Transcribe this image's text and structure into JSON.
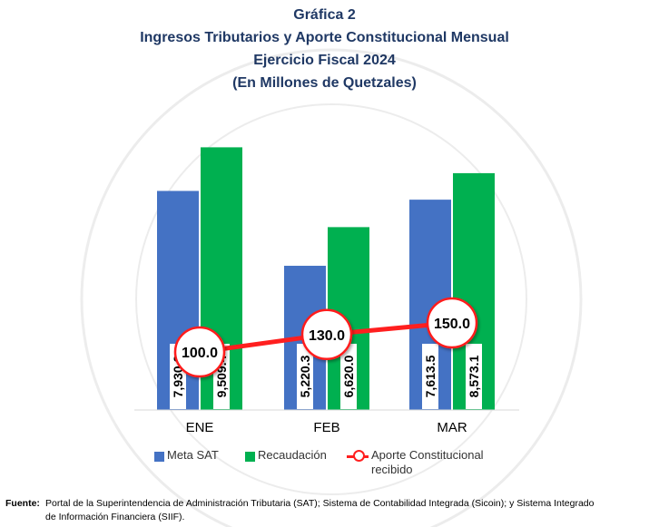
{
  "header": {
    "line1": "Gráfica 2",
    "line2": "Ingresos Tributarios y Aporte Constitucional Mensual",
    "line3": "Ejercicio Fiscal 2024",
    "line4": "(En Millones de Quetzales)"
  },
  "chart_data": {
    "type": "bar",
    "categories": [
      "ENE",
      "FEB",
      "MAR"
    ],
    "series": [
      {
        "name": "Meta SAT",
        "type": "bar",
        "values": [
          7930.2,
          5220.3,
          7613.5
        ],
        "labels": [
          "7,930.2",
          "5,220.3",
          "7,613.5"
        ],
        "color": "#4472c4"
      },
      {
        "name": "Recaudación",
        "type": "bar",
        "values": [
          9509.4,
          6620.0,
          8573.1
        ],
        "labels": [
          "9,509.4",
          "6,620.0",
          "8,573.1"
        ],
        "color": "#00b050"
      },
      {
        "name": "Aporte Constitucional recibido",
        "type": "line",
        "values": [
          100.0,
          130.0,
          150.0
        ],
        "labels": [
          "100.0",
          "130.0",
          "150.0"
        ],
        "color": "#ff1f1f"
      }
    ],
    "legend_position": "bottom",
    "grid": false
  },
  "legend": {
    "item1": "Meta SAT",
    "item2": "Recaudación",
    "item3a": "Aporte Constitucional",
    "item3b": "recibido"
  },
  "footer": {
    "label": "Fuente:",
    "line1": "Portal de la Superintendencia de Administración Tributaria (SAT); Sistema de Contabilidad Integrada (Sicoin); y Sistema Integrado",
    "line2": "de Información Financiera (SIIF)."
  }
}
